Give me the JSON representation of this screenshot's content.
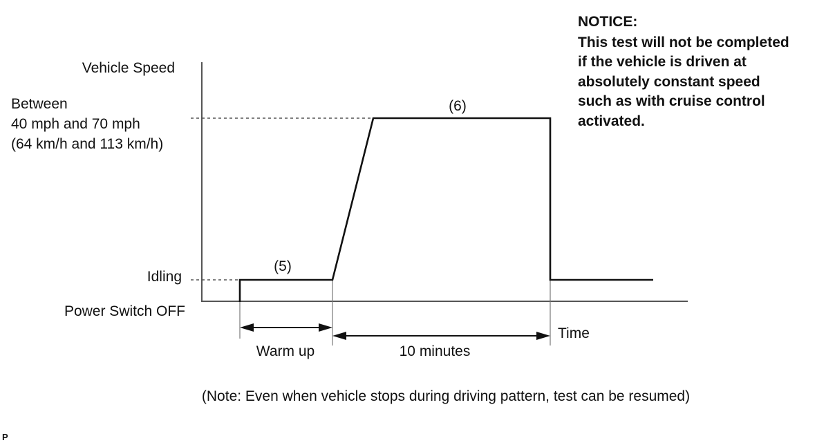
{
  "diagram": {
    "y_axis_label": "Vehicle Speed",
    "speed_label_lines": [
      "Between",
      "40 mph and 70 mph",
      "(64 km/h and 113 km/h)"
    ],
    "idle_label": "Idling",
    "off_label": "Power Switch OFF",
    "x_axis_label": "Time",
    "step_5_label": "(5)",
    "step_6_label": "(6)",
    "warmup_label": "Warm up",
    "duration_label": "10 minutes",
    "notice_lines": [
      "NOTICE:",
      "This test will not be completed",
      "if the vehicle is driven at",
      "absolutely constant speed",
      "such as with cruise control",
      "activated."
    ],
    "footer_note": "(Note: Even when vehicle stops during driving pattern, test can be resumed)",
    "corner_mark": "P"
  }
}
